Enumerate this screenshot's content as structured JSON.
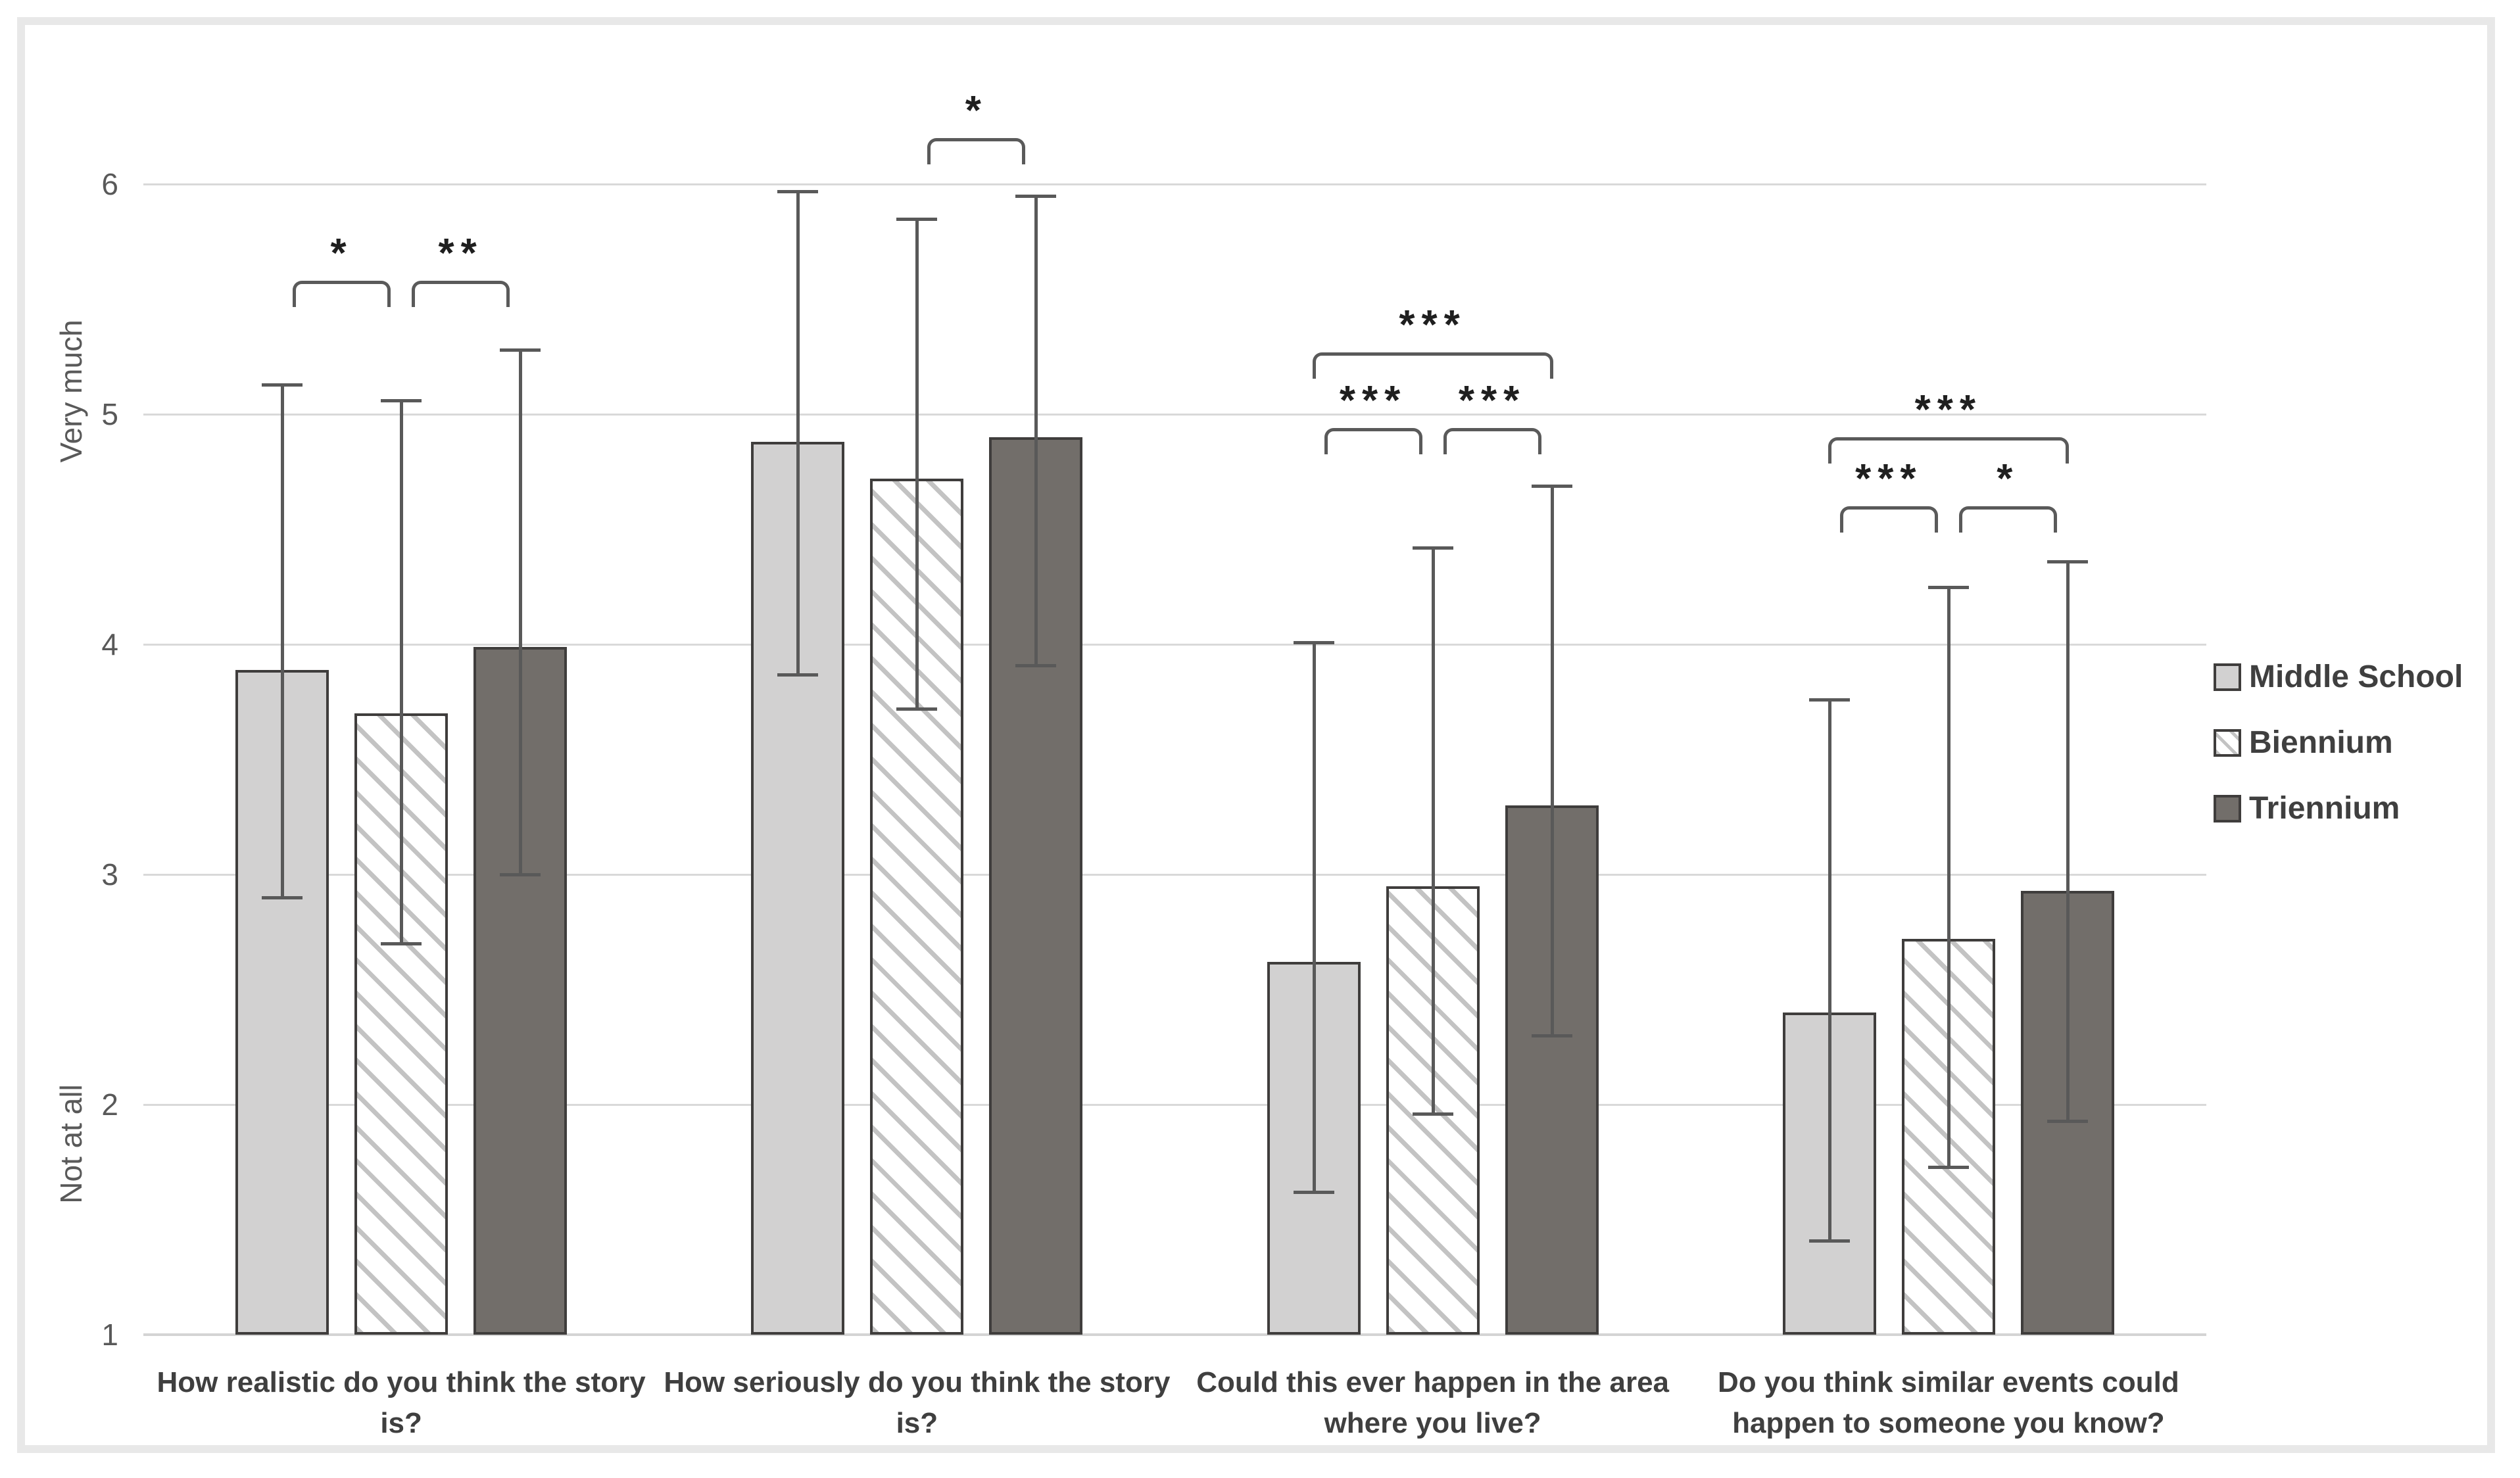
{
  "figure": {
    "kind": "grouped bar chart with error bars and significance brackets",
    "title": ""
  },
  "colors": {
    "middle_school": "#d2d1d1",
    "triennium": "#726e6a",
    "hatch_stripe": "#c3c3c3",
    "bar_border": "#3f3d3c",
    "gridline": "#d9d9d9",
    "axis_line": "#d4d4d4",
    "whisker": "#595959",
    "bracket": "#5a5a5a",
    "star": "#1f1f1f",
    "tick_text": "#595959",
    "label_text": "#3f3f3f",
    "frame": "#e8e8e8"
  },
  "y_axis": {
    "min": 1,
    "max": 6.5,
    "ticks": [
      1,
      2,
      3,
      4,
      5,
      6
    ],
    "label_top": "Very much",
    "label_bottom": "Not at all"
  },
  "legend": {
    "position": "right",
    "items": [
      {
        "label": "Middle School",
        "swatch": "solid-light"
      },
      {
        "label": "Biennium",
        "swatch": "hatch"
      },
      {
        "label": "Triennium",
        "swatch": "solid-dark"
      }
    ]
  },
  "chart_data": {
    "type": "bar",
    "grid": "horizontal",
    "ylim": [
      1,
      6.5
    ],
    "legend_position": "right",
    "categories": [
      "How realistic do you think the story\nis?",
      "How seriously do you think the story\nis?",
      "Could this ever happen in the area\nwhere you live?",
      "Do you think similar events could\nhappen to someone you know?"
    ],
    "series": [
      {
        "name": "Middle School",
        "pattern": "solid-light",
        "values": [
          3.89,
          4.88,
          2.62,
          2.4
        ],
        "err_low": [
          2.9,
          3.87,
          1.62,
          1.41
        ],
        "err_high": [
          5.13,
          5.97,
          4.01,
          3.76
        ]
      },
      {
        "name": "Biennium",
        "pattern": "hatch",
        "values": [
          3.7,
          4.72,
          2.95,
          2.72
        ],
        "err_low": [
          2.7,
          3.72,
          1.96,
          1.73
        ],
        "err_high": [
          5.06,
          5.85,
          4.42,
          4.25
        ]
      },
      {
        "name": "Triennium",
        "pattern": "solid-dark",
        "values": [
          3.99,
          4.9,
          3.3,
          2.93
        ],
        "err_low": [
          3.0,
          3.91,
          2.3,
          1.93
        ],
        "err_high": [
          5.28,
          5.95,
          4.69,
          4.36
        ]
      }
    ],
    "significance": [
      [
        {
          "a": 0,
          "b": 1,
          "label": "*",
          "y": 5.58
        },
        {
          "a": 1,
          "b": 2,
          "label": "**",
          "y": 5.58
        }
      ],
      [
        {
          "a": 1,
          "b": 2,
          "label": "*",
          "y": 6.2
        }
      ],
      [
        {
          "a": 0,
          "b": 1,
          "label": "***",
          "y": 4.94
        },
        {
          "a": 1,
          "b": 2,
          "label": "***",
          "y": 4.94
        },
        {
          "a": 0,
          "b": 2,
          "label": "***",
          "y": 5.27
        }
      ],
      [
        {
          "a": 0,
          "b": 1,
          "label": "***",
          "y": 4.6
        },
        {
          "a": 1,
          "b": 2,
          "label": "*",
          "y": 4.6
        },
        {
          "a": 0,
          "b": 2,
          "label": "***",
          "y": 4.9
        }
      ]
    ]
  }
}
